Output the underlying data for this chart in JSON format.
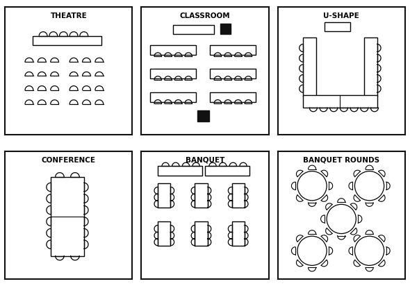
{
  "panels": [
    {
      "name": "THEATRE",
      "col": 0,
      "row": 0
    },
    {
      "name": "CLASSROOM",
      "col": 1,
      "row": 0
    },
    {
      "name": "U-SHAPE",
      "col": 2,
      "row": 0
    },
    {
      "name": "CONFERENCE",
      "col": 0,
      "row": 1
    },
    {
      "name": "BANQUET",
      "col": 1,
      "row": 1
    },
    {
      "name": "BANQUET ROUNDS",
      "col": 2,
      "row": 1
    }
  ],
  "bg": "#ffffff",
  "black": "#111111",
  "title_fs": 7.5
}
